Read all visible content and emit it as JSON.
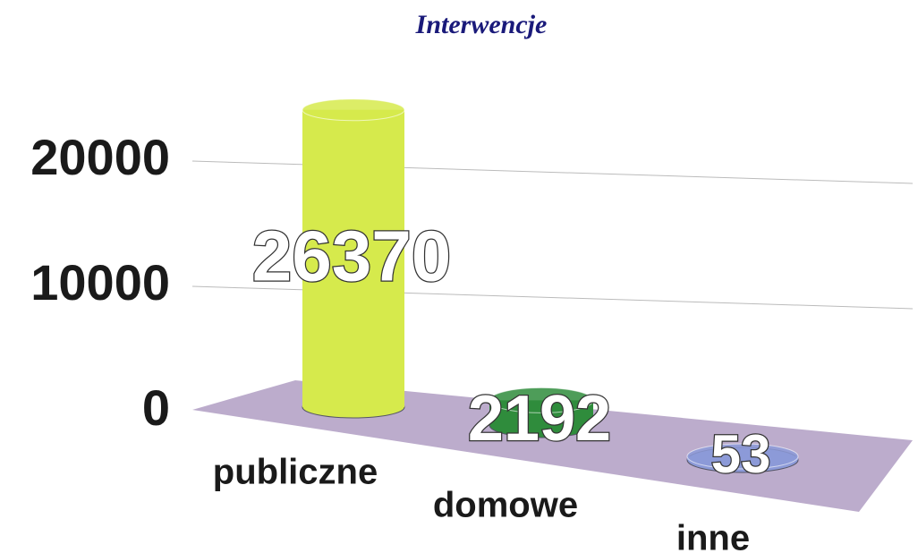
{
  "chart_data": {
    "type": "bar",
    "title": "Interwencje",
    "categories": [
      "publiczne",
      "domowe",
      "inne"
    ],
    "values": [
      26370,
      2192,
      53
    ],
    "colors": [
      "#d6ea4c",
      "#2f8c3c",
      "#8c9ad8"
    ],
    "ylim": [
      0,
      25000
    ],
    "yticks": [
      0,
      10000,
      20000
    ],
    "grid": true
  }
}
